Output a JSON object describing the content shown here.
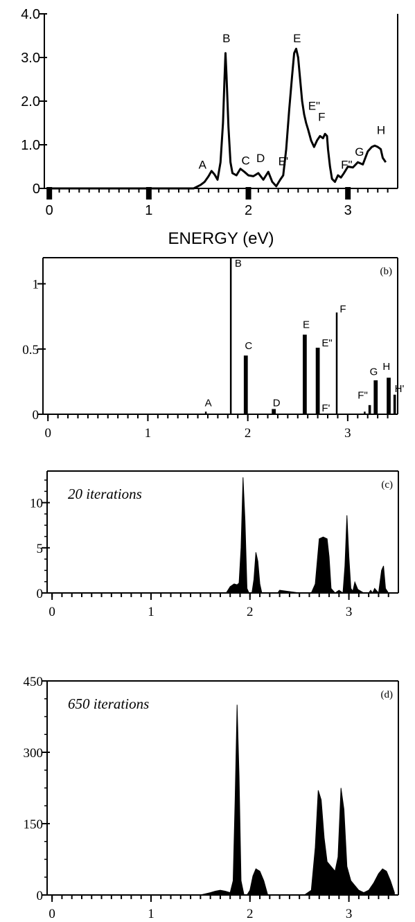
{
  "chart_data": [
    {
      "id": "a",
      "type": "line",
      "title": "",
      "xlabel": "ENERGY (eV)",
      "ylabel": "",
      "xlim": [
        -0.05,
        3.5
      ],
      "ylim": [
        0,
        4.0
      ],
      "xticks": [
        0,
        1,
        2,
        3
      ],
      "xtick_labels": [
        "0",
        "1",
        "2",
        "3"
      ],
      "yticks": [
        0,
        1.0,
        2.0,
        3.0,
        4.0
      ],
      "ytick_labels": [
        "0",
        "1.0",
        "2.0",
        "3.0",
        "4.0"
      ],
      "series": [
        {
          "x": [
            0,
            1.45,
            1.52,
            1.56,
            1.6,
            1.63,
            1.66,
            1.69,
            1.72,
            1.745,
            1.76,
            1.77,
            1.78,
            1.8,
            1.82,
            1.84,
            1.88,
            1.92,
            1.96,
            2.0,
            2.05,
            2.1,
            2.15,
            2.2,
            2.24,
            2.28,
            2.32,
            2.35,
            2.38,
            2.41,
            2.44,
            2.46,
            2.48,
            2.5,
            2.52,
            2.54,
            2.56,
            2.58,
            2.6,
            2.63,
            2.66,
            2.69,
            2.72,
            2.75,
            2.77,
            2.79,
            2.8,
            2.82,
            2.84,
            2.87,
            2.9,
            2.93,
            2.96,
            3.0,
            3.05,
            3.1,
            3.15,
            3.2,
            3.24,
            3.27,
            3.3,
            3.33,
            3.35,
            3.38
          ],
          "y": [
            0,
            0.0,
            0.08,
            0.15,
            0.28,
            0.4,
            0.32,
            0.2,
            0.6,
            1.5,
            2.5,
            3.1,
            2.6,
            1.4,
            0.6,
            0.35,
            0.3,
            0.45,
            0.38,
            0.3,
            0.28,
            0.35,
            0.2,
            0.38,
            0.15,
            0.05,
            0.2,
            0.3,
            0.9,
            1.8,
            2.6,
            3.1,
            3.2,
            3.0,
            2.5,
            2.0,
            1.7,
            1.5,
            1.35,
            1.1,
            0.95,
            1.1,
            1.2,
            1.15,
            1.25,
            1.2,
            0.9,
            0.5,
            0.22,
            0.15,
            0.3,
            0.25,
            0.35,
            0.5,
            0.48,
            0.6,
            0.55,
            0.85,
            0.95,
            0.98,
            0.95,
            0.9,
            0.7,
            0.6
          ]
        }
      ],
      "annotations": [
        {
          "text": "A",
          "x": 1.5,
          "y": 0.45
        },
        {
          "text": "B",
          "x": 1.74,
          "y": 3.35
        },
        {
          "text": "C",
          "x": 1.93,
          "y": 0.55
        },
        {
          "text": "D",
          "x": 2.08,
          "y": 0.6
        },
        {
          "text": "E'",
          "x": 2.3,
          "y": 0.53
        },
        {
          "text": "E",
          "x": 2.45,
          "y": 3.35
        },
        {
          "text": "E\"",
          "x": 2.6,
          "y": 1.8
        },
        {
          "text": "F",
          "x": 2.7,
          "y": 1.55
        },
        {
          "text": "F\"",
          "x": 2.93,
          "y": 0.45
        },
        {
          "text": "G",
          "x": 3.07,
          "y": 0.75
        },
        {
          "text": "H",
          "x": 3.29,
          "y": 1.25
        }
      ]
    },
    {
      "id": "b",
      "type": "bar",
      "panel_tag": "(b)",
      "xlim": [
        -0.05,
        3.5
      ],
      "ylim": [
        0,
        1.2
      ],
      "xticks": [
        0,
        1,
        2,
        3
      ],
      "xtick_labels": [
        "0",
        "1",
        "2",
        "3"
      ],
      "yticks": [
        0,
        0.5,
        1
      ],
      "ytick_labels": [
        "0",
        "0.5",
        "1"
      ],
      "x": [
        1.58,
        1.83,
        1.98,
        2.26,
        2.57,
        2.7,
        2.89,
        3.17,
        3.22,
        3.28,
        3.41,
        3.47
      ],
      "values": [
        0.02,
        1.2,
        0.45,
        0.04,
        0.61,
        0.51,
        0.78,
        0.02,
        0.07,
        0.26,
        0.28,
        0.15
      ],
      "bar_width": [
        0.01,
        0.01,
        0.04,
        0.04,
        0.04,
        0.04,
        0.01,
        0.01,
        0.025,
        0.04,
        0.04,
        0.025
      ],
      "annotations": [
        {
          "text": "A",
          "x": 1.57,
          "y": 0.06
        },
        {
          "text": "B",
          "x": 1.87,
          "y": 1.13
        },
        {
          "text": "C",
          "x": 1.97,
          "y": 0.5
        },
        {
          "text": "D",
          "x": 2.25,
          "y": 0.06
        },
        {
          "text": "E",
          "x": 2.55,
          "y": 0.66
        },
        {
          "text": "E\"",
          "x": 2.74,
          "y": 0.52
        },
        {
          "text": "F'",
          "x": 2.74,
          "y": 0.02
        },
        {
          "text": "F",
          "x": 2.92,
          "y": 0.78
        },
        {
          "text": "F\"",
          "x": 3.1,
          "y": 0.12
        },
        {
          "text": "G",
          "x": 3.22,
          "y": 0.3
        },
        {
          "text": "H",
          "x": 3.35,
          "y": 0.34
        },
        {
          "text": "H'",
          "x": 3.47,
          "y": 0.17
        }
      ]
    },
    {
      "id": "c",
      "type": "area",
      "panel_tag": "(c)",
      "label": "20 iterations",
      "xlim": [
        -0.05,
        3.5
      ],
      "ylim": [
        0,
        13.5
      ],
      "xticks": [
        0,
        1,
        2,
        3
      ],
      "xtick_labels": [
        "0",
        "1",
        "2",
        "3"
      ],
      "yticks": [
        0,
        5,
        10
      ],
      "ytick_labels": [
        "0",
        "5",
        "10"
      ],
      "series": [
        {
          "x": [
            1.6,
            1.76,
            1.8,
            1.84,
            1.87,
            1.89,
            1.91,
            1.93,
            1.95,
            1.97,
            1.99,
            2.02,
            2.04,
            2.06,
            2.08,
            2.1,
            2.12,
            2.2,
            2.28,
            2.3,
            2.5,
            2.62,
            2.66,
            2.7,
            2.74,
            2.78,
            2.8,
            2.82,
            2.86,
            2.9,
            2.94,
            2.96,
            2.98,
            3.0,
            3.02,
            3.04,
            3.06,
            3.09,
            3.12,
            3.15,
            3.2,
            3.22,
            3.24,
            3.26,
            3.3,
            3.33,
            3.35,
            3.37,
            3.4
          ],
          "y": [
            0,
            0,
            0.7,
            1.0,
            0.9,
            1.1,
            5.0,
            12.8,
            8.0,
            0.5,
            0,
            0,
            1.5,
            4.5,
            3.5,
            1.0,
            0,
            0,
            0,
            0.3,
            0,
            0,
            1.0,
            6.0,
            6.2,
            6.0,
            4.0,
            0.5,
            0,
            0.3,
            0,
            3.0,
            8.6,
            4.0,
            0.5,
            0.2,
            1.2,
            0.4,
            0.2,
            0,
            0,
            0.3,
            0,
            0.5,
            0,
            2.5,
            3.0,
            0.5,
            0
          ]
        }
      ]
    },
    {
      "id": "d",
      "type": "area",
      "panel_tag": "(d)",
      "label": "650 iterations",
      "xlim": [
        -0.05,
        3.5
      ],
      "ylim": [
        0,
        450
      ],
      "xticks": [
        0,
        1,
        2,
        3
      ],
      "xtick_labels": [
        "0",
        "1",
        "2",
        "3"
      ],
      "yticks": [
        0,
        150,
        300,
        450
      ],
      "ytick_labels": [
        "0",
        "150",
        "300",
        "450"
      ],
      "series": [
        {
          "x": [
            1.5,
            1.6,
            1.65,
            1.7,
            1.75,
            1.8,
            1.83,
            1.85,
            1.87,
            1.89,
            1.91,
            1.94,
            1.97,
            2.0,
            2.03,
            2.06,
            2.1,
            2.14,
            2.18,
            2.4,
            2.55,
            2.62,
            2.66,
            2.69,
            2.72,
            2.75,
            2.78,
            2.82,
            2.86,
            2.89,
            2.92,
            2.95,
            2.98,
            3.02,
            3.06,
            3.1,
            3.15,
            3.2,
            3.25,
            3.3,
            3.34,
            3.38,
            3.42,
            3.46
          ],
          "y": [
            0,
            5,
            8,
            10,
            8,
            5,
            30,
            200,
            400,
            250,
            30,
            0,
            0,
            10,
            40,
            55,
            50,
            30,
            0,
            0,
            0,
            10,
            100,
            220,
            200,
            120,
            70,
            60,
            50,
            80,
            225,
            180,
            60,
            30,
            20,
            10,
            5,
            10,
            25,
            45,
            55,
            50,
            30,
            5
          ]
        }
      ]
    }
  ]
}
